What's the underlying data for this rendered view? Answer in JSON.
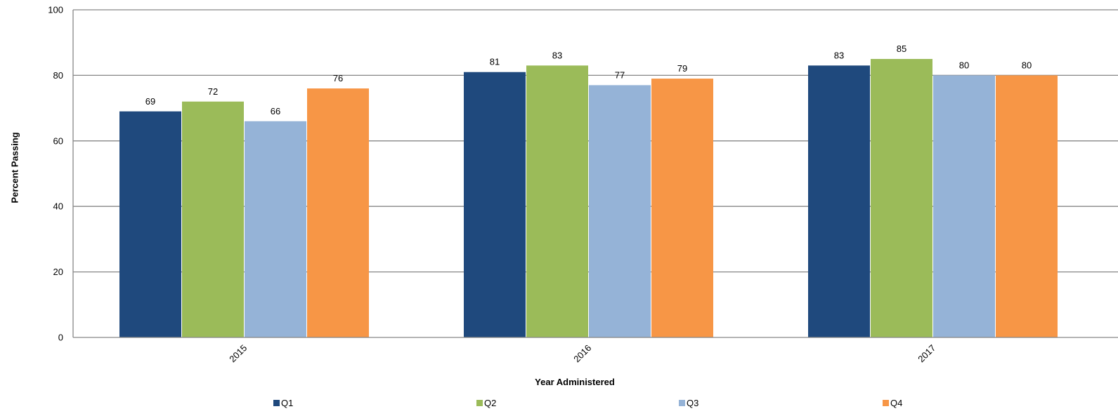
{
  "chart_data": {
    "type": "bar",
    "title": "",
    "xlabel": "Year Administered",
    "ylabel": "Percent Passing",
    "categories": [
      "2015",
      "2016",
      "2017"
    ],
    "ylim": [
      0,
      100
    ],
    "yticks": [
      0,
      20,
      40,
      60,
      80,
      100
    ],
    "grid": true,
    "legend_position": "bottom",
    "series": [
      {
        "name": "Q1",
        "color": "#1F497D",
        "values": [
          69,
          81,
          83
        ]
      },
      {
        "name": "Q2",
        "color": "#9BBB59",
        "values": [
          72,
          83,
          85
        ]
      },
      {
        "name": "Q3",
        "color": "#95B3D7",
        "values": [
          66,
          77,
          80
        ]
      },
      {
        "name": "Q4",
        "color": "#F79646",
        "values": [
          76,
          79,
          80
        ]
      }
    ]
  }
}
